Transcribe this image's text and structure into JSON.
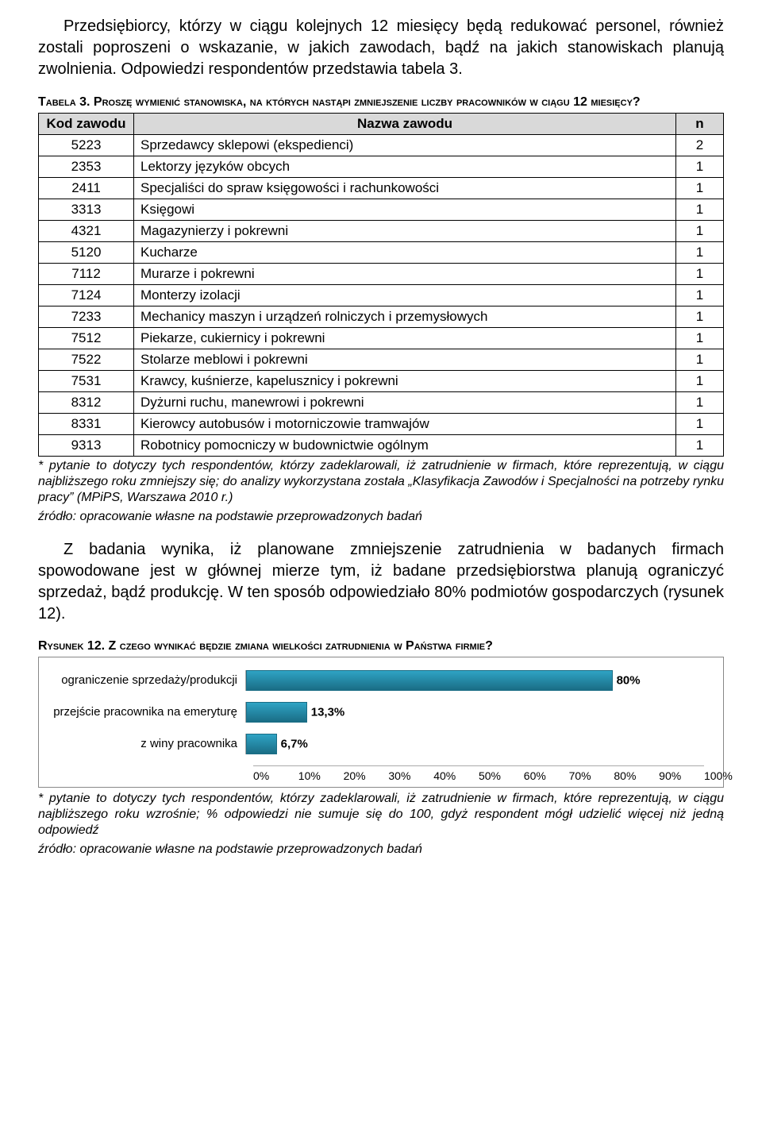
{
  "paragraphs": {
    "intro": "Przedsiębiorcy, którzy w ciągu kolejnych 12 miesięcy będą redukować personel, również zostali poproszeni o wskazanie, w jakich zawodach, bądź na jakich stanowiskach planują zwolnienia. Odpowiedzi respondentów przedstawia tabela 3.",
    "mid": "Z badania wynika, iż planowane zmniejszenie zatrudnienia w badanych firmach spowodowane jest w głównej mierze tym, iż badane przedsiębiorstwa planują ograniczyć sprzedaż, bądź produkcję. W ten sposób odpowiedziało 80% podmiotów gospodarczych (rysunek 12)."
  },
  "table": {
    "title": "Tabela 3. Proszę wymienić stanowiska, na których nastąpi zmniejszenie liczby pracowników w ciągu 12 miesięcy?",
    "headers": {
      "code": "Kod zawodu",
      "name": "Nazwa zawodu",
      "count": "n"
    },
    "rows": [
      {
        "code": "5223",
        "name": "Sprzedawcy sklepowi (ekspedienci)",
        "count": "2"
      },
      {
        "code": "2353",
        "name": "Lektorzy języków obcych",
        "count": "1"
      },
      {
        "code": "2411",
        "name": "Specjaliści do spraw księgowości i rachunkowości",
        "count": "1"
      },
      {
        "code": "3313",
        "name": "Księgowi",
        "count": "1"
      },
      {
        "code": "4321",
        "name": "Magazynierzy i pokrewni",
        "count": "1"
      },
      {
        "code": "5120",
        "name": "Kucharze",
        "count": "1"
      },
      {
        "code": "7112",
        "name": "Murarze i pokrewni",
        "count": "1"
      },
      {
        "code": "7124",
        "name": "Monterzy izolacji",
        "count": "1"
      },
      {
        "code": "7233",
        "name": "Mechanicy maszyn i urządzeń rolniczych i przemysłowych",
        "count": "1"
      },
      {
        "code": "7512",
        "name": "Piekarze, cukiernicy i pokrewni",
        "count": "1"
      },
      {
        "code": "7522",
        "name": "Stolarze meblowi i pokrewni",
        "count": "1"
      },
      {
        "code": "7531",
        "name": "Krawcy, kuśnierze, kapelusznicy i pokrewni",
        "count": "1"
      },
      {
        "code": "8312",
        "name": "Dyżurni ruchu, manewrowi i pokrewni",
        "count": "1"
      },
      {
        "code": "8331",
        "name": "Kierowcy autobusów i motorniczowie tramwajów",
        "count": "1"
      },
      {
        "code": "9313",
        "name": "Robotnicy pomocniczy w budownictwie ogólnym",
        "count": "1"
      }
    ]
  },
  "footnotes": {
    "table_note": "* pytanie to dotyczy tych respondentów, którzy zadeklarowali, iż zatrudnienie w firmach, które reprezentują, w ciągu najbliższego roku zmniejszy się; do analizy wykorzystana została „Klasyfikacja Zawodów i Specjalności na potrzeby rynku pracy” (MPiPS, Warszawa 2010 r.)",
    "source": "źródło: opracowanie własne na podstawie przeprowadzonych badań",
    "chart_note": "* pytanie to dotyczy tych respondentów, którzy zadeklarowali, iż zatrudnienie w firmach, które reprezentują, w ciągu najbliższego roku wzrośnie; % odpowiedzi nie sumuje się do 100, gdyż respondent mógł udzielić więcej niż jedną odpowiedź"
  },
  "chart": {
    "title": "Rysunek 12. Z czego wynikać będzie zmiana wielkości zatrudnienia w Państwa firmie?",
    "type": "bar",
    "bar_color": "#2fa3c4",
    "bar_border": "#1a6d85",
    "grid_color": "#e0e0e0",
    "background_color": "#ffffff",
    "label_fontsize": 15,
    "value_fontsize": 15,
    "xlim": [
      0,
      100
    ],
    "xtick_step": 10,
    "items": [
      {
        "label": "ograniczenie sprzedaży/produkcji",
        "value": 80,
        "display": "80%"
      },
      {
        "label": "przejście pracownika na emeryturę",
        "value": 13.3,
        "display": "13,3%"
      },
      {
        "label": "z winy pracownika",
        "value": 6.7,
        "display": "6,7%"
      }
    ],
    "axis_ticks": [
      "0%",
      "10%",
      "20%",
      "30%",
      "40%",
      "50%",
      "60%",
      "70%",
      "80%",
      "90%",
      "100%"
    ]
  }
}
